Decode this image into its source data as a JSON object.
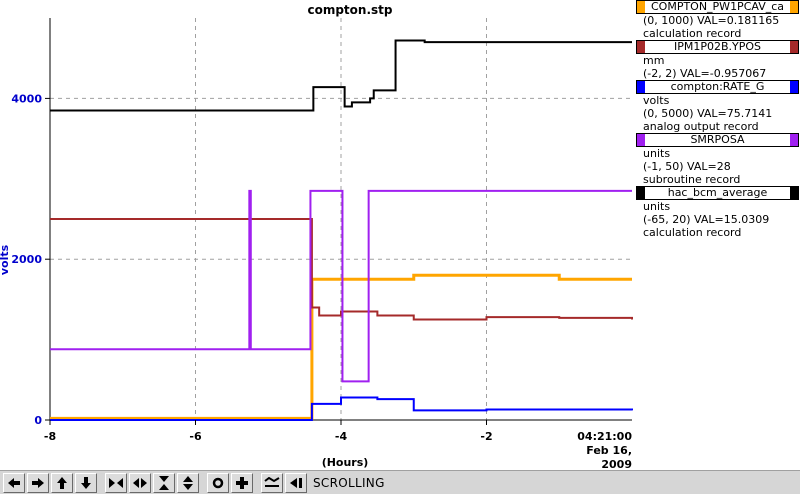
{
  "plot": {
    "title": "compton.stp",
    "y_axis_label": "volts",
    "x_axis_label": "(Hours)",
    "time": "04:21:00",
    "date": "Feb 16, 2009"
  },
  "legend": [
    {
      "name": "COMPTON_PW1PCAV_ca",
      "color": "#ffa500",
      "lines": [
        "(0, 1000) VAL=0.181165",
        "calculation record"
      ]
    },
    {
      "name": "IPM1P02B.YPOS",
      "color": "#a52a2a",
      "lines": [
        "mm",
        "(-2, 2) VAL=-0.957067"
      ]
    },
    {
      "name": "compton:RATE_G",
      "color": "#0000ff",
      "lines": [
        "volts",
        "(0, 5000) VAL=75.7141",
        "analog output record"
      ]
    },
    {
      "name": "SMRPOSA",
      "color": "#a020f0",
      "lines": [
        "units",
        "(-1, 50) VAL=28",
        "subroutine record"
      ]
    },
    {
      "name": "hac_bcm_average",
      "color": "#000000",
      "lines": [
        "units",
        "(-65, 20) VAL=15.0309",
        "calculation record"
      ]
    }
  ],
  "toolbar": {
    "buttons": [
      {
        "name": "scroll-left-button",
        "icon": "arrow-left-icon"
      },
      {
        "name": "scroll-right-button",
        "icon": "arrow-right-icon"
      },
      {
        "name": "scroll-up-button",
        "icon": "arrow-up-icon"
      },
      {
        "name": "scroll-down-button",
        "icon": "arrow-down-icon"
      },
      {
        "name": "zoom-in-x-button",
        "icon": "zoom-in-x-icon"
      },
      {
        "name": "zoom-out-x-button",
        "icon": "zoom-out-x-icon"
      },
      {
        "name": "zoom-in-y-button",
        "icon": "zoom-in-y-icon"
      },
      {
        "name": "zoom-out-y-button",
        "icon": "zoom-out-y-icon"
      },
      {
        "name": "auto-scale-button",
        "icon": "circle-icon"
      },
      {
        "name": "default-scale-button",
        "icon": "plus-icon"
      },
      {
        "name": "autoscroll-button",
        "icon": "autoscroll-icon"
      },
      {
        "name": "stop-scroll-button",
        "icon": "stop-scroll-icon"
      }
    ],
    "status": "SCROLLING"
  },
  "chart_data": {
    "type": "line",
    "title": "compton.stp",
    "xlabel": "(Hours)",
    "ylabel": "volts",
    "x_ticks": [
      -8,
      -6,
      -4,
      -2
    ],
    "y_ticks": [
      0,
      2000,
      4000
    ],
    "xlim": [
      -8,
      0
    ],
    "ylim": [
      0,
      5000
    ],
    "grid": true,
    "time_label": "04:21:00",
    "date_label": "Feb 16, 2009",
    "series": [
      {
        "name": "hac_bcm_average",
        "color": "#000000",
        "x": [
          -8,
          -4.4,
          -4.38,
          -4.0,
          -3.95,
          -3.85,
          -3.6,
          -3.55,
          -3.3,
          -3.25,
          -2.9,
          -2.85,
          0
        ],
        "values": [
          3850,
          3850,
          4140,
          4140,
          3900,
          3950,
          4000,
          4100,
          4100,
          4720,
          4720,
          4700,
          4700
        ]
      },
      {
        "name": "IPM1P02B.YPOS",
        "color": "#a52a2a",
        "x": [
          -8,
          -4.45,
          -4.4,
          -4.3,
          -4.0,
          -3.5,
          -3.0,
          -2.0,
          -1.0,
          0
        ],
        "values": [
          2500,
          2500,
          1400,
          1300,
          1350,
          1300,
          1250,
          1280,
          1270,
          1250
        ]
      },
      {
        "name": "SMRPOSA",
        "color": "#a020f0",
        "x": [
          -8,
          -5.3,
          -5.26,
          -5.24,
          -5.2,
          -4.45,
          -4.42,
          -4.0,
          -3.98,
          -3.62,
          -3.6,
          -3.55,
          0
        ],
        "values": [
          880,
          880,
          2850,
          880,
          880,
          880,
          2850,
          2850,
          480,
          2850,
          2850,
          2850,
          2850
        ]
      },
      {
        "name": "COMPTON_PW1PCAV_ca",
        "color": "#ffa500",
        "x": [
          -8,
          -4.45,
          -4.4,
          -3.0,
          -2.0,
          -1.0,
          0
        ],
        "values": [
          20,
          20,
          1750,
          1800,
          1800,
          1750,
          1750
        ]
      },
      {
        "name": "compton:RATE_G",
        "color": "#0000ff",
        "x": [
          -8,
          -4.45,
          -4.4,
          -4.0,
          -3.5,
          -3.0,
          -2.0,
          -1.0,
          0
        ],
        "values": [
          0,
          0,
          200,
          280,
          260,
          120,
          130,
          130,
          120
        ]
      }
    ]
  }
}
